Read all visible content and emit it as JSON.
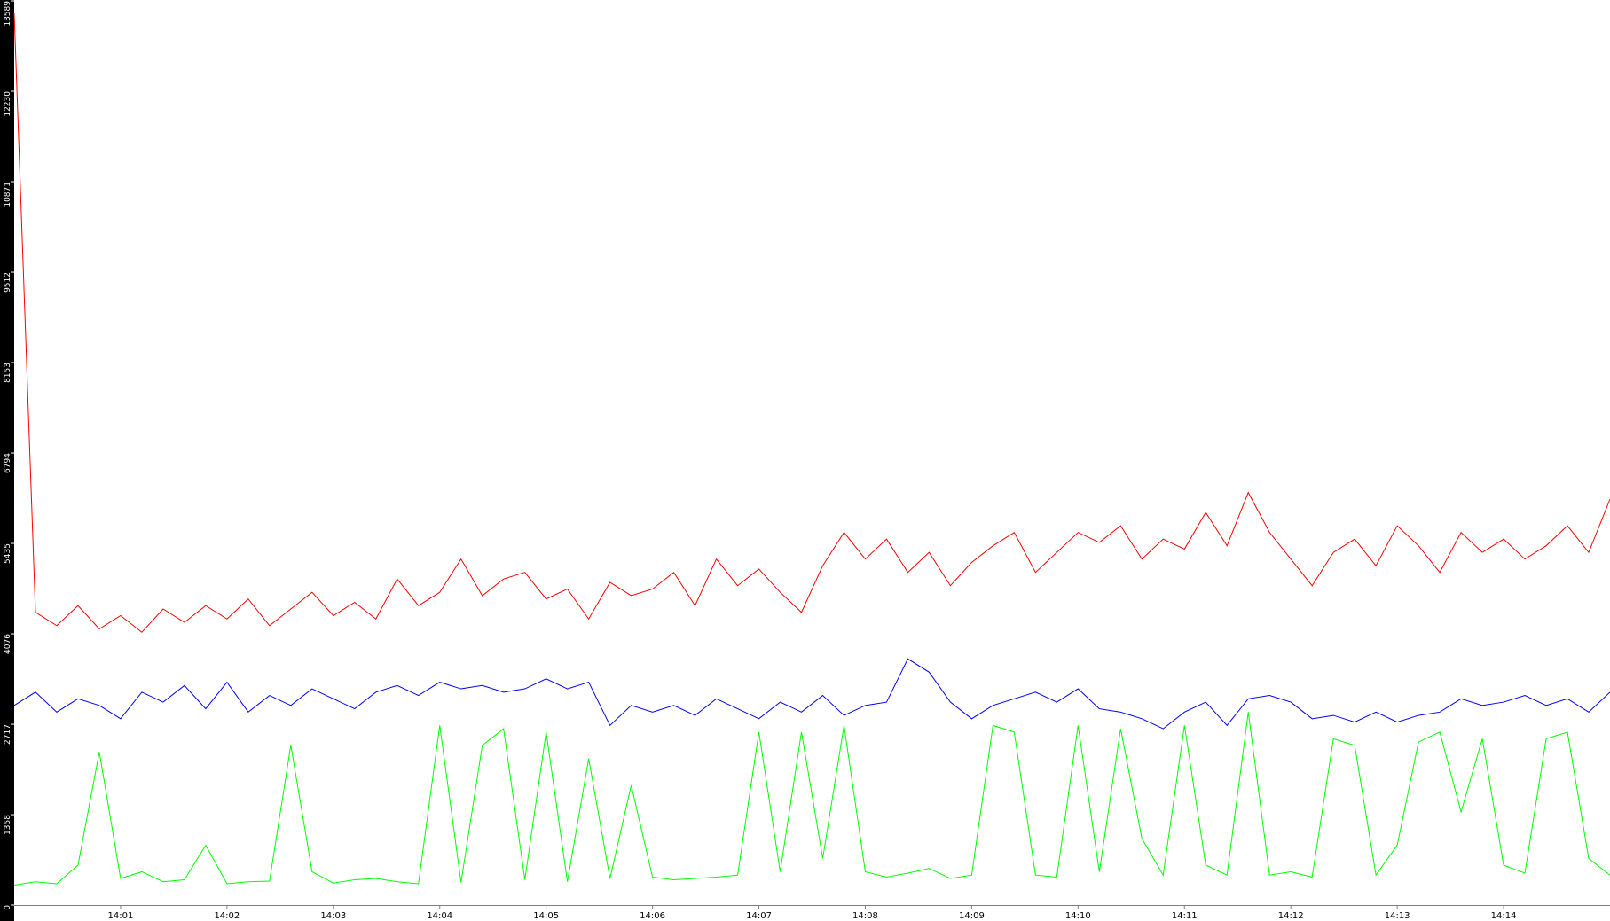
{
  "chart_data": {
    "type": "line",
    "x": [
      0,
      0.2,
      0.4,
      0.6,
      0.8,
      1,
      1.2,
      1.4,
      1.6,
      1.8,
      2,
      2.2,
      2.4,
      2.6,
      2.8,
      3,
      3.2,
      3.4,
      3.6,
      3.8,
      4,
      4.2,
      4.4,
      4.6,
      4.8,
      5,
      5.2,
      5.4,
      5.6,
      5.8,
      6,
      6.2,
      6.4,
      6.6,
      6.8,
      7,
      7.2,
      7.4,
      7.6,
      7.8,
      8,
      8.2,
      8.4,
      8.6,
      8.8,
      9,
      9.2,
      9.4,
      9.6,
      9.8,
      10,
      10.2,
      10.4,
      10.6,
      10.8,
      11,
      11.2,
      11.4,
      11.6,
      11.8,
      12,
      12.2,
      12.4,
      12.6,
      12.8,
      13,
      13.2,
      13.4,
      13.6,
      13.8,
      14,
      14.2,
      14.4,
      14.6,
      14.8,
      15
    ],
    "series": [
      {
        "color": "#ff0000",
        "values": [
          13400,
          4400,
          4200,
          4500,
          4150,
          4350,
          4100,
          4450,
          4250,
          4500,
          4300,
          4600,
          4200,
          4450,
          4700,
          4350,
          4550,
          4300,
          4900,
          4500,
          4700,
          5200,
          4650,
          4900,
          5000,
          4600,
          4750,
          4300,
          4850,
          4650,
          4750,
          5000,
          4500,
          5200,
          4800,
          5050,
          4700,
          4400,
          5100,
          5600,
          5200,
          5500,
          5000,
          5300,
          4800,
          5150,
          5400,
          5600,
          5000,
          5300,
          5600,
          5450,
          5700,
          5200,
          5500,
          5350,
          5900,
          5400,
          6200,
          5600,
          5200,
          4800,
          5300,
          5500,
          5100,
          5700,
          5400,
          5000,
          5600,
          5300,
          5500,
          5200,
          5400,
          5700,
          5300,
          6100
        ]
      },
      {
        "color": "#0000ff",
        "values": [
          3000,
          3200,
          2900,
          3100,
          3000,
          2800,
          3200,
          3050,
          3300,
          2950,
          3350,
          2900,
          3150,
          3000,
          3250,
          3100,
          2950,
          3200,
          3300,
          3150,
          3350,
          3250,
          3300,
          3200,
          3250,
          3400,
          3250,
          3350,
          2700,
          3000,
          2900,
          3000,
          2850,
          3100,
          2950,
          2800,
          3050,
          2900,
          3150,
          2850,
          3000,
          3050,
          3700,
          3500,
          3050,
          2800,
          3000,
          3100,
          3200,
          3050,
          3250,
          2950,
          2900,
          2800,
          2650,
          2900,
          3050,
          2700,
          3100,
          3150,
          3050,
          2800,
          2850,
          2750,
          2900,
          2750,
          2850,
          2900,
          3100,
          3000,
          3050,
          3150,
          3000,
          3100,
          2900,
          3200
        ]
      },
      {
        "color": "#00ff00",
        "values": [
          300,
          350,
          320,
          600,
          2300,
          400,
          500,
          350,
          380,
          900,
          320,
          350,
          360,
          2400,
          500,
          330,
          380,
          400,
          350,
          320,
          2700,
          340,
          2400,
          2650,
          380,
          2600,
          350,
          2200,
          400,
          1800,
          420,
          380,
          400,
          420,
          450,
          2600,
          500,
          2600,
          700,
          2700,
          500,
          420,
          480,
          550,
          400,
          450,
          2700,
          2600,
          450,
          420,
          2700,
          500,
          2650,
          1000,
          450,
          2700,
          600,
          450,
          2900,
          450,
          500,
          420,
          2500,
          2400,
          450,
          900,
          2450,
          2600,
          1400,
          2500,
          600,
          480,
          2500,
          2600,
          700,
          450
        ]
      }
    ],
    "xlim": [
      0,
      15
    ],
    "xticks": [
      {
        "value": 1,
        "label": "14:01"
      },
      {
        "value": 2,
        "label": "14:02"
      },
      {
        "value": 3,
        "label": "14:03"
      },
      {
        "value": 4,
        "label": "14:04"
      },
      {
        "value": 5,
        "label": "14:05"
      },
      {
        "value": 6,
        "label": "14:06"
      },
      {
        "value": 7,
        "label": "14:07"
      },
      {
        "value": 8,
        "label": "14:08"
      },
      {
        "value": 9,
        "label": "14:09"
      },
      {
        "value": 10,
        "label": "14:10"
      },
      {
        "value": 11,
        "label": "14:11"
      },
      {
        "value": 12,
        "label": "14:12"
      },
      {
        "value": 13,
        "label": "14:13"
      },
      {
        "value": 14,
        "label": "14:14"
      }
    ],
    "ylim": [
      0,
      13589
    ],
    "yticks": [
      0,
      1358,
      2717,
      4076,
      5435,
      6794,
      8153,
      9512,
      10871,
      12230,
      13589
    ]
  }
}
